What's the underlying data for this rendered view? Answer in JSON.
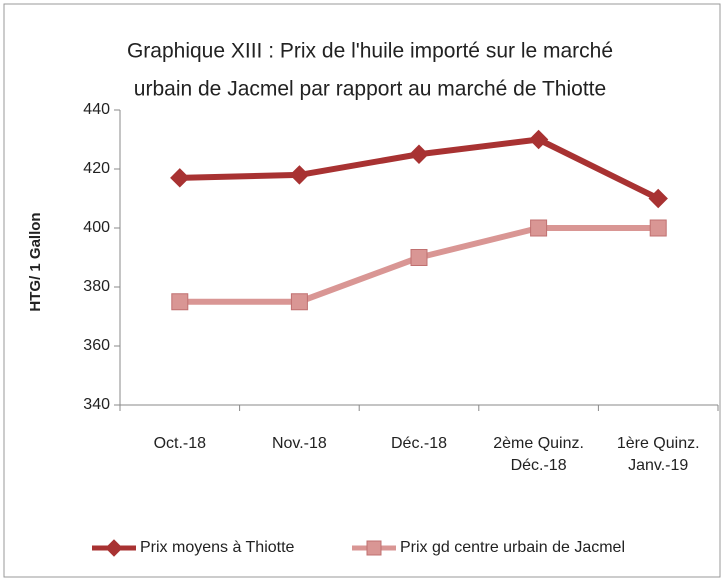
{
  "chart_data": {
    "type": "line",
    "title": [
      "Graphique XIII : Prix de l'huile importé sur le marché",
      "urbain de Jacmel par rapport au marché de Thiotte"
    ],
    "y_label": "HTG/ 1 Gallon",
    "categories": [
      "Oct.-18",
      "Nov.-18",
      "Déc.-18",
      "2ème  Quinz. Déc.-18",
      "1ère  Quinz. Janv.-19"
    ],
    "series": [
      {
        "name": "Prix moyens à Thiotte",
        "color": "#a83232",
        "marker": "diamond",
        "values": [
          417,
          418,
          425,
          430,
          410
        ]
      },
      {
        "name": "Prix gd centre urbain de Jacmel",
        "color": "#d99694",
        "marker": "square",
        "values": [
          375,
          375,
          390,
          400,
          400
        ]
      }
    ],
    "ylim": [
      340,
      440
    ],
    "yticks": [
      340,
      360,
      380,
      400,
      420,
      440
    ],
    "grid": false,
    "legend": "bottom"
  }
}
